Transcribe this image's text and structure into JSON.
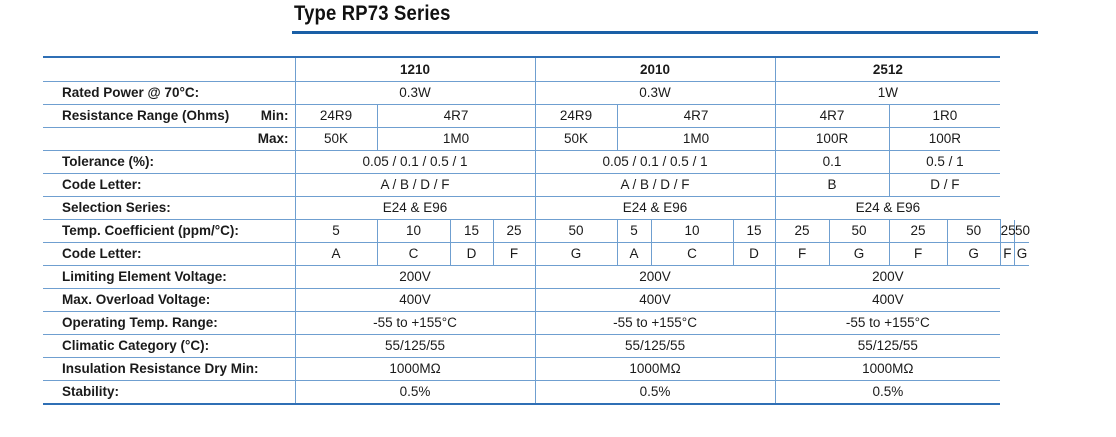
{
  "title": "Type RP73 Series",
  "accent_color": "#2f6fb5",
  "sizes": [
    "1210",
    "2010",
    "2512"
  ],
  "labels": {
    "rated_power": "Rated Power @ 70°C:",
    "resistance_range": "Resistance Range (Ohms)",
    "min": "Min:",
    "max": "Max:",
    "tolerance": "Tolerance (%):",
    "code_letter": "Code Letter:",
    "selection_series": "Selection Series:",
    "temp_coefficient": "Temp. Coefficient (ppm/°C):",
    "code_letter_2": "Code Letter:",
    "limiting_voltage": "Limiting Element Voltage:",
    "overload_voltage": "Max. Overload Voltage:",
    "operating_range": "Operating Temp. Range:",
    "climatic_category": "Climatic Category (°C):",
    "insulation": "Insulation Resistance Dry Min:",
    "stability": "Stability:"
  },
  "rated_power": [
    "0.3W",
    "0.3W",
    "1W"
  ],
  "resistance_min": [
    "24R9",
    "4R7",
    "24R9",
    "4R7",
    "4R7",
    "1R0"
  ],
  "resistance_max": [
    "50K",
    "1M0",
    "50K",
    "1M0",
    "100R",
    "100R"
  ],
  "tolerance": [
    "0.05 / 0.1 / 0.5 / 1",
    "0.05 / 0.1 / 0.5 / 1",
    "0.1",
    "0.5 / 1"
  ],
  "code_letter": [
    "A / B / D / F",
    "A / B / D / F",
    "B",
    "D / F"
  ],
  "selection_series": [
    "E24 & E96",
    "E24 & E96",
    "E24 & E96"
  ],
  "tcr": [
    "5",
    "10",
    "15",
    "25",
    "50",
    "5",
    "10",
    "15",
    "25",
    "50",
    "25",
    "50",
    "25",
    "50"
  ],
  "tcr_codes": [
    "A",
    "C",
    "D",
    "F",
    "G",
    "A",
    "C",
    "D",
    "F",
    "G",
    "F",
    "G",
    "F",
    "G"
  ],
  "limiting_voltage": [
    "200V",
    "200V",
    "200V"
  ],
  "overload_voltage": [
    "400V",
    "400V",
    "400V"
  ],
  "operating_range": [
    "-55 to +155°C",
    "-55 to +155°C",
    "-55 to +155°C"
  ],
  "climatic_category": [
    "55/125/55",
    "55/125/55",
    "55/125/55"
  ],
  "insulation": [
    "1000MΩ",
    "1000MΩ",
    "1000MΩ"
  ],
  "stability": [
    "0.5%",
    "0.5%",
    "0.5%"
  ]
}
